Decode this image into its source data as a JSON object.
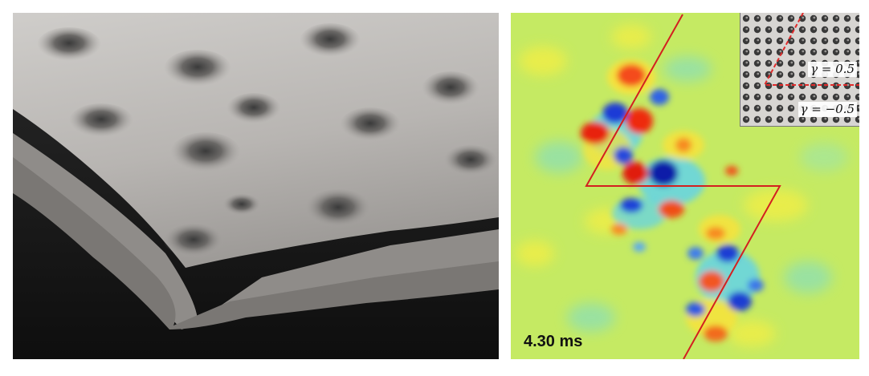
{
  "right_panel": {
    "time_label": "4.30 ms",
    "inset": {
      "gamma_top": "γ = 0.5",
      "gamma_bottom": "γ = −0.5"
    }
  },
  "colors": {
    "field_background": "#c5ea63",
    "interface_line": "#d32020",
    "inset_dashed_line": "#e02a2a"
  }
}
